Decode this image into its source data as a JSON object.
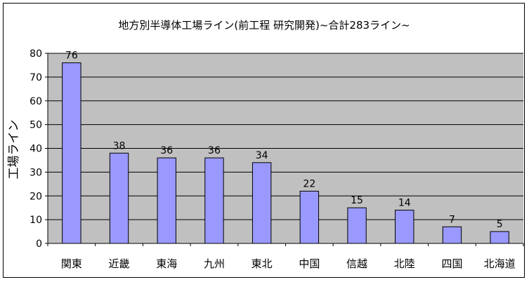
{
  "chart_data": {
    "type": "bar",
    "title": "地方別半導体工場ライン(前工程 研究開発)~合計283ライン~",
    "xlabel": "",
    "ylabel": "工場ライン",
    "categories": [
      "関東",
      "近畿",
      "東海",
      "九州",
      "東北",
      "中国",
      "信越",
      "北陸",
      "四国",
      "北海道"
    ],
    "values": [
      76,
      38,
      36,
      36,
      34,
      22,
      15,
      14,
      7,
      5
    ],
    "ylim": [
      0,
      80
    ],
    "yticks": [
      0,
      10,
      20,
      30,
      40,
      50,
      60,
      70,
      80
    ],
    "grid": true,
    "legend": "none",
    "colors": {
      "bar": "#9999ff",
      "plot_bg": "#c0c0c0",
      "grid": "#000000"
    }
  }
}
